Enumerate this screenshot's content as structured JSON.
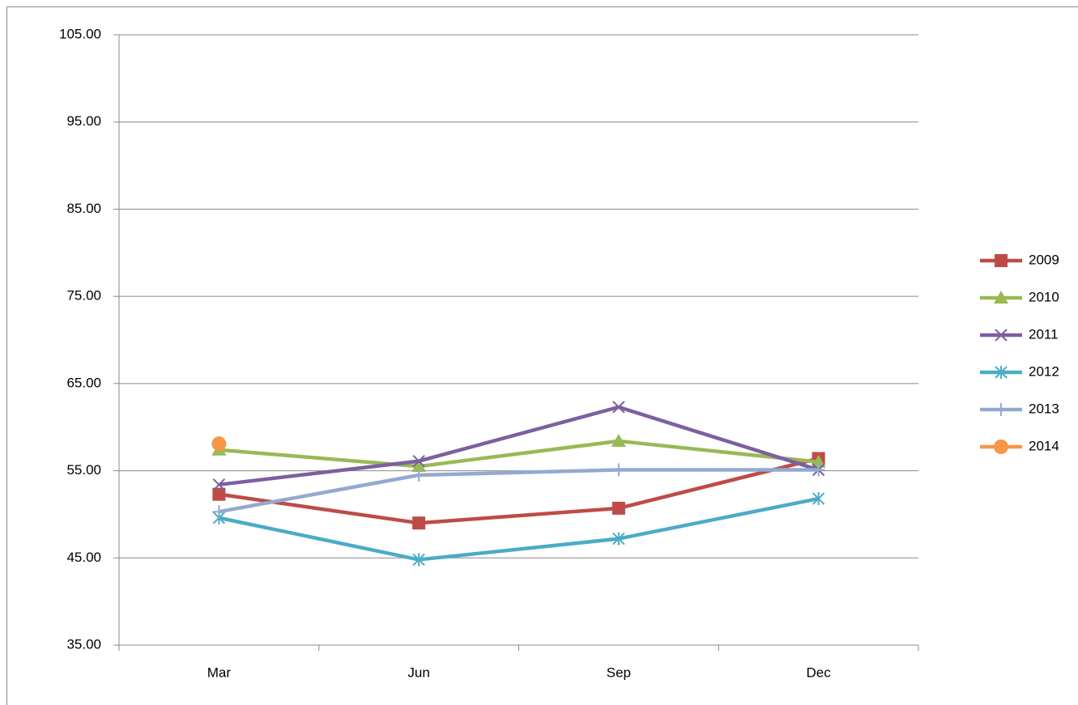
{
  "chart_data": {
    "type": "line",
    "categories": [
      "Mar",
      "Jun",
      "Sep",
      "Dec"
    ],
    "series": [
      {
        "name": "2009",
        "color": "#be4b48",
        "marker": "square",
        "values": [
          52.3,
          49.0,
          50.7,
          56.4
        ]
      },
      {
        "name": "2010",
        "color": "#98b954",
        "marker": "triangle",
        "values": [
          57.4,
          55.5,
          58.4,
          56.0
        ]
      },
      {
        "name": "2011",
        "color": "#7d5fa0",
        "marker": "x",
        "values": [
          53.4,
          56.1,
          62.3,
          55.1
        ]
      },
      {
        "name": "2012",
        "color": "#4aacc6",
        "marker": "asterisk",
        "values": [
          49.6,
          44.8,
          47.2,
          51.8
        ]
      },
      {
        "name": "2013",
        "color": "#93a9cf",
        "marker": "plus",
        "values": [
          50.3,
          54.5,
          55.1,
          55.1
        ]
      },
      {
        "name": "2014",
        "color": "#f79646",
        "marker": "circle",
        "values": [
          58.1,
          null,
          null,
          null
        ]
      }
    ],
    "ylim": [
      35,
      105
    ],
    "yticks": [
      {
        "value": 35,
        "label": "35.00"
      },
      {
        "value": 45,
        "label": "45.00"
      },
      {
        "value": 55,
        "label": "55.00"
      },
      {
        "value": 65,
        "label": "65.00"
      },
      {
        "value": 75,
        "label": "75.00"
      },
      {
        "value": 85,
        "label": "85.00"
      },
      {
        "value": 95,
        "label": "95.00"
      },
      {
        "value": 105,
        "label": "105.00"
      }
    ],
    "grid": true,
    "legend": "right"
  }
}
